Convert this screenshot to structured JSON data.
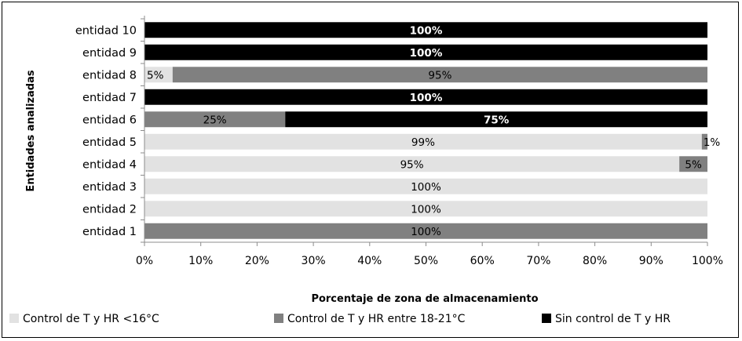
{
  "chart_data": {
    "type": "bar",
    "orientation": "horizontal",
    "stacked": "percent",
    "categories": [
      "entidad 1",
      "entidad 2",
      "entidad 3",
      "entidad 4",
      "entidad 5",
      "entidad 6",
      "entidad 7",
      "entidad 8",
      "entidad 9",
      "entidad 10"
    ],
    "series": [
      {
        "name": "Control de T y HR <16°C",
        "color": "#e2e2e2",
        "values": [
          0,
          100,
          100,
          95,
          99,
          0,
          0,
          5,
          0,
          0
        ],
        "labels": [
          "",
          "100%",
          "100%",
          "95%",
          "99%",
          "",
          "",
          "5%",
          "",
          ""
        ]
      },
      {
        "name": "Control de T y HR entre 18-21°C",
        "color": "#808080",
        "values": [
          100,
          0,
          0,
          5,
          1,
          25,
          0,
          95,
          0,
          0
        ],
        "labels": [
          "100%",
          "",
          "",
          "5%",
          "1%",
          "25%",
          "",
          "95%",
          "",
          ""
        ]
      },
      {
        "name": "Sin control de T y HR",
        "color": "#000000",
        "values": [
          0,
          0,
          0,
          0,
          0,
          75,
          100,
          0,
          100,
          100
        ],
        "labels": [
          "",
          "",
          "",
          "",
          "",
          "75%",
          "100%",
          "",
          "100%",
          "100%"
        ]
      }
    ],
    "xlabel": "Porcentaje de zona de almacenamiento",
    "ylabel": "Entidades analizadas",
    "xlim": [
      0,
      100
    ],
    "x_ticks": [
      "0%",
      "10%",
      "20%",
      "30%",
      "40%",
      "50%",
      "60%",
      "70%",
      "80%",
      "90%",
      "100%"
    ],
    "legend_position": "bottom",
    "grid": false
  }
}
